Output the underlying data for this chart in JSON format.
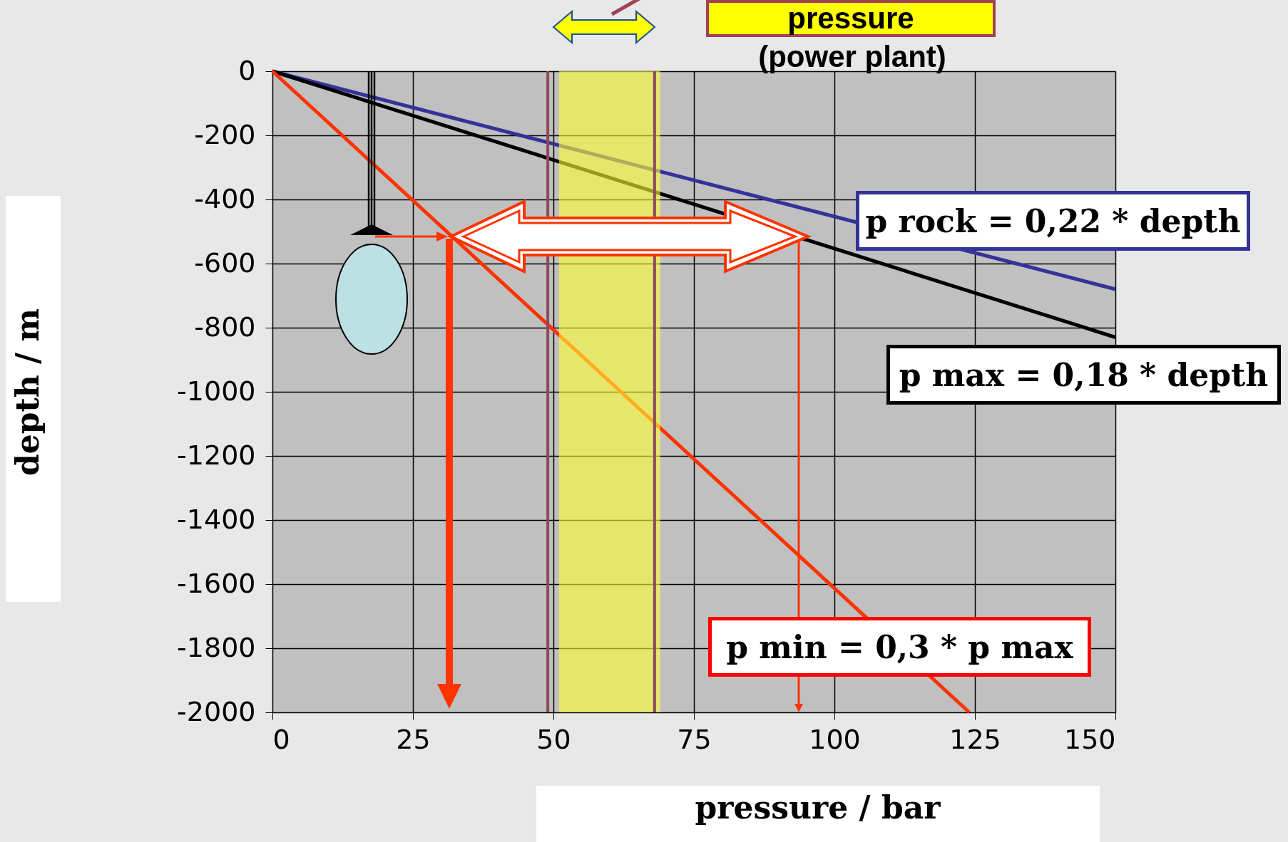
{
  "chart_data": {
    "type": "line",
    "xlabel": "pressure / bar",
    "ylabel": "depth / m",
    "xlim": [
      0,
      150
    ],
    "xticks": [
      0,
      25,
      50,
      75,
      100,
      125,
      150
    ],
    "ylim": [
      -2000,
      0
    ],
    "yticks": [
      -2000,
      -1800,
      -1600,
      -1400,
      -1200,
      -1000,
      -800,
      -600,
      -400,
      -200,
      0
    ],
    "grid": true,
    "legend": false,
    "marker": "none",
    "series": [
      {
        "name": "p rock = 0,22 * depth",
        "color": "#333399",
        "x": [
          0,
          150
        ],
        "values": [
          0,
          -680
        ]
      },
      {
        "name": "p max = 0,18 * depth",
        "color": "#000000",
        "x": [
          0,
          150
        ],
        "values": [
          0,
          -830
        ]
      },
      {
        "name": "p min = 0,3 * p max",
        "color": "#ff3300",
        "x": [
          0,
          124
        ],
        "values": [
          0,
          -2000
        ]
      }
    ],
    "bands": [
      {
        "axis": "x",
        "from": 51,
        "to": 69,
        "color": "#ffff33"
      }
    ],
    "ref_lines": [
      {
        "axis": "x",
        "value": 49,
        "color": "#8b4a5a"
      },
      {
        "axis": "x",
        "value": 68,
        "color": "#8b4a5a"
      }
    ],
    "annotations": [
      "pressure",
      "(power plant)"
    ]
  }
}
